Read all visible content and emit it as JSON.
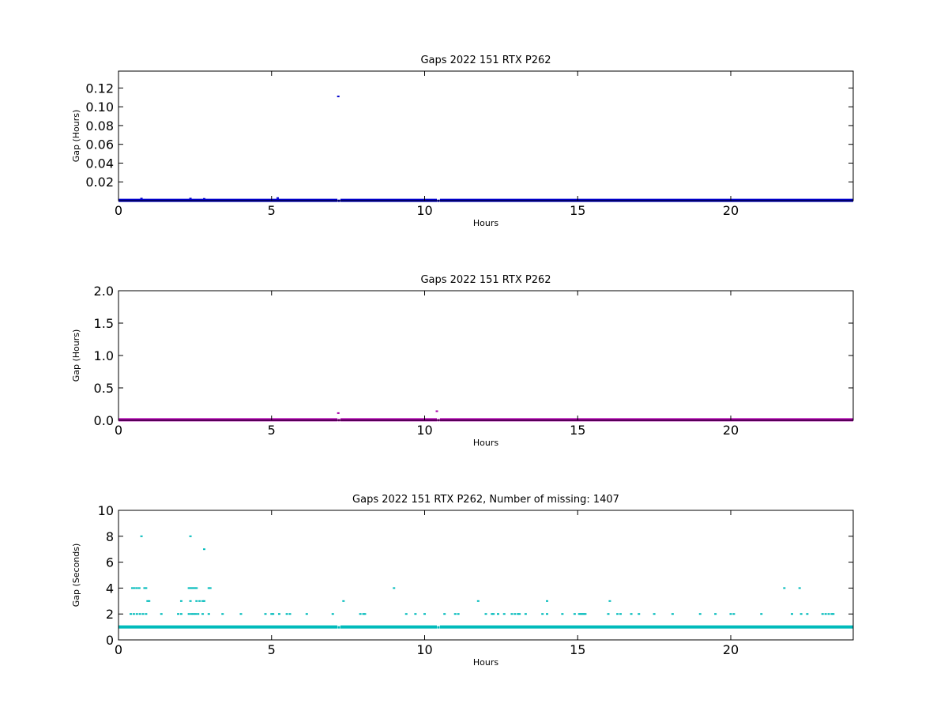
{
  "chart_data": [
    {
      "type": "scatter",
      "title": "Gaps 2022 151 RTX  P262",
      "xlabel": "Hours",
      "ylabel": "Gap (Hours)",
      "xlim": [
        0,
        24
      ],
      "ylim": [
        0,
        0.138
      ],
      "xticks": [
        "0",
        "5",
        "10",
        "15",
        "20"
      ],
      "yticks": [
        "0.02",
        "0.04",
        "0.06",
        "0.08",
        "0.10",
        "0.12"
      ],
      "color": "#0000cc",
      "baseline": {
        "y": 0.000278,
        "from": 0,
        "to": 24,
        "breaks": [
          7.2,
          10.45
        ]
      },
      "points": [
        [
          0.75,
          0.0022
        ],
        [
          2.35,
          0.0022
        ],
        [
          2.8,
          0.0019
        ],
        [
          5.2,
          0.0028
        ],
        [
          7.18,
          0.111
        ]
      ]
    },
    {
      "type": "scatter",
      "title": "Gaps 2022 151 RTX  P262",
      "xlabel": "Hours",
      "ylabel": "Gap (Hours)",
      "xlim": [
        0,
        24
      ],
      "ylim": [
        0,
        2.0
      ],
      "xticks": [
        "0",
        "5",
        "10",
        "15",
        "20"
      ],
      "yticks": [
        "0.0",
        "0.5",
        "1.0",
        "1.5",
        "2.0"
      ],
      "color": "#aa00aa",
      "baseline": {
        "y": 0.008,
        "from": 0,
        "to": 24,
        "breaks": [
          7.2,
          10.45
        ]
      },
      "points": [
        [
          7.18,
          0.111
        ],
        [
          10.4,
          0.14
        ]
      ]
    },
    {
      "type": "scatter",
      "title": "Gaps 2022 151 RTX  P262, Number of missing: 1407",
      "xlabel": "Hours",
      "ylabel": "Gap (Seconds)",
      "xlim": [
        0,
        24
      ],
      "ylim": [
        0,
        10
      ],
      "xticks": [
        "0",
        "5",
        "10",
        "15",
        "20"
      ],
      "yticks": [
        "0",
        "2",
        "4",
        "6",
        "8",
        "10"
      ],
      "color": "#00bbbb",
      "baseline": {
        "y": 1,
        "from": 0,
        "to": 24,
        "breaks": [
          7.2,
          10.45
        ]
      },
      "points": [
        [
          0.4,
          2
        ],
        [
          0.5,
          2
        ],
        [
          0.6,
          2
        ],
        [
          0.7,
          2
        ],
        [
          0.8,
          2
        ],
        [
          0.9,
          2
        ],
        [
          0.45,
          4
        ],
        [
          0.52,
          4
        ],
        [
          0.6,
          4
        ],
        [
          0.68,
          4
        ],
        [
          0.85,
          4
        ],
        [
          0.9,
          4
        ],
        [
          0.75,
          8
        ],
        [
          0.95,
          3
        ],
        [
          1.0,
          3
        ],
        [
          1.4,
          2
        ],
        [
          1.95,
          2
        ],
        [
          2.05,
          2
        ],
        [
          2.05,
          3
        ],
        [
          2.3,
          4
        ],
        [
          2.35,
          4
        ],
        [
          2.4,
          4
        ],
        [
          2.45,
          4
        ],
        [
          2.5,
          4
        ],
        [
          2.55,
          4
        ],
        [
          2.3,
          2
        ],
        [
          2.38,
          2
        ],
        [
          2.45,
          2
        ],
        [
          2.52,
          2
        ],
        [
          2.6,
          2
        ],
        [
          2.35,
          8
        ],
        [
          2.35,
          3
        ],
        [
          2.55,
          3
        ],
        [
          2.65,
          3
        ],
        [
          2.75,
          3
        ],
        [
          2.8,
          3
        ],
        [
          2.8,
          7
        ],
        [
          2.75,
          2
        ],
        [
          2.95,
          2
        ],
        [
          2.95,
          4
        ],
        [
          3.0,
          4
        ],
        [
          3.4,
          2
        ],
        [
          4.0,
          2
        ],
        [
          4.8,
          2
        ],
        [
          5.0,
          2
        ],
        [
          5.05,
          2
        ],
        [
          5.25,
          2
        ],
        [
          5.5,
          2
        ],
        [
          5.6,
          2
        ],
        [
          6.15,
          2
        ],
        [
          7.0,
          2
        ],
        [
          7.35,
          3
        ],
        [
          7.9,
          2
        ],
        [
          8.0,
          2
        ],
        [
          8.05,
          2
        ],
        [
          9.0,
          4
        ],
        [
          9.4,
          2
        ],
        [
          9.7,
          2
        ],
        [
          10.0,
          2
        ],
        [
          10.65,
          2
        ],
        [
          11.0,
          2
        ],
        [
          11.1,
          2
        ],
        [
          11.75,
          3
        ],
        [
          12.0,
          2
        ],
        [
          12.2,
          2
        ],
        [
          12.25,
          2
        ],
        [
          12.4,
          2
        ],
        [
          12.6,
          2
        ],
        [
          12.85,
          2
        ],
        [
          12.95,
          2
        ],
        [
          13.05,
          2
        ],
        [
          13.1,
          2
        ],
        [
          13.3,
          2
        ],
        [
          13.85,
          2
        ],
        [
          14.0,
          2
        ],
        [
          14.0,
          3
        ],
        [
          14.5,
          2
        ],
        [
          14.9,
          2
        ],
        [
          15.05,
          2
        ],
        [
          15.1,
          2
        ],
        [
          15.15,
          2
        ],
        [
          15.2,
          2
        ],
        [
          15.25,
          2
        ],
        [
          16.0,
          2
        ],
        [
          16.05,
          3
        ],
        [
          16.3,
          2
        ],
        [
          16.4,
          2
        ],
        [
          16.75,
          2
        ],
        [
          17.0,
          2
        ],
        [
          17.5,
          2
        ],
        [
          18.1,
          2
        ],
        [
          19.0,
          2
        ],
        [
          19.5,
          2
        ],
        [
          20.0,
          2
        ],
        [
          20.1,
          2
        ],
        [
          21.0,
          2
        ],
        [
          21.75,
          4
        ],
        [
          22.0,
          2
        ],
        [
          22.25,
          4
        ],
        [
          22.3,
          2
        ],
        [
          22.5,
          2
        ],
        [
          23.0,
          2
        ],
        [
          23.1,
          2
        ],
        [
          23.2,
          2
        ],
        [
          23.3,
          2
        ],
        [
          23.35,
          2
        ]
      ]
    }
  ]
}
